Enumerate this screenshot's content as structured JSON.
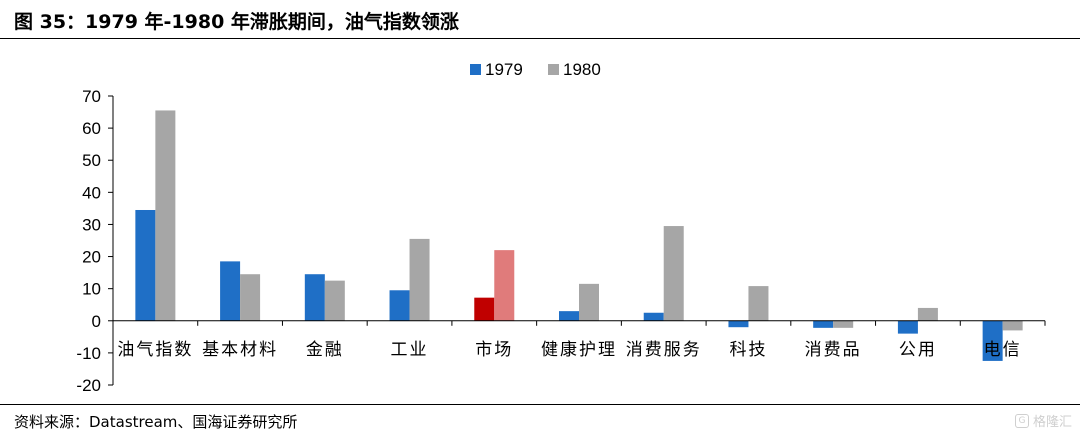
{
  "header": {
    "title": "图 35：1979 年-1980 年滞胀期间，油气指数领涨"
  },
  "footer": {
    "source": "资料来源：Datastream、国海证券研究所",
    "watermark": "格隆汇"
  },
  "chart_data": {
    "type": "bar",
    "title": "",
    "xlabel": "",
    "ylabel": "",
    "ylim": [
      -20,
      70
    ],
    "yticks": [
      70,
      60,
      50,
      40,
      30,
      20,
      10,
      0,
      -10,
      -20
    ],
    "categories": [
      "油气指数",
      "基本材料",
      "金融",
      "工业",
      "市场",
      "健康护理",
      "消费服务",
      "科技",
      "消费品",
      "公用",
      "电信"
    ],
    "series": [
      {
        "name": "1979",
        "color": "#1f6fc6",
        "values": [
          34.5,
          18.5,
          14.5,
          9.5,
          7.2,
          3.0,
          2.5,
          -2.0,
          -2.2,
          -4.0,
          -12.5
        ]
      },
      {
        "name": "1980",
        "color": "#a6a6a6",
        "values": [
          65.5,
          14.5,
          12.5,
          25.5,
          22.0,
          11.5,
          29.5,
          10.8,
          -2.2,
          4.0,
          -3.0
        ]
      }
    ],
    "highlight": {
      "category_index": 4,
      "colors": [
        "#c00000",
        "#e07b7b"
      ]
    },
    "legend_position": "top",
    "grid": false
  }
}
